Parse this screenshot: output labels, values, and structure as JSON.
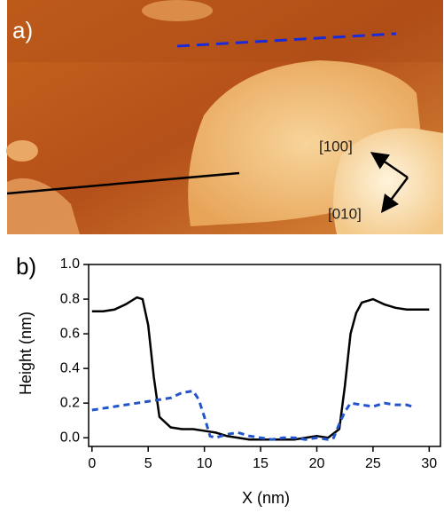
{
  "panel_a": {
    "label": "a)",
    "directions": [
      "[100]",
      "[010]"
    ]
  },
  "chart_data": {
    "type": "line",
    "panel_label": "b)",
    "y_label": "Height (nm)",
    "x_label": "X (nm)",
    "xlim": [
      -0.3,
      31
    ],
    "ylim": [
      -0.05,
      1.0
    ],
    "xticks": [
      0,
      5,
      10,
      15,
      20,
      25,
      30
    ],
    "yticks": [
      {
        "value": 0,
        "label": "0.0"
      },
      {
        "value": 0.2,
        "label": "0.2"
      },
      {
        "value": 0.4,
        "label": "0.4"
      },
      {
        "value": 0.6,
        "label": "0.6"
      },
      {
        "value": 0.8,
        "label": "0.8"
      },
      {
        "value": 1.0,
        "label": "1.0"
      }
    ],
    "series": [
      {
        "color": "#000000",
        "line_style": "solid",
        "x": [
          0,
          1,
          2,
          3,
          4,
          4.5,
          5,
          5.5,
          6,
          7,
          8,
          9,
          10,
          11,
          12,
          13,
          14,
          15,
          16,
          17,
          18,
          19,
          20,
          21,
          22,
          22.5,
          23,
          23.5,
          24,
          25,
          26,
          27,
          28,
          29,
          30
        ],
        "values": [
          0.73,
          0.73,
          0.74,
          0.77,
          0.81,
          0.8,
          0.65,
          0.35,
          0.12,
          0.06,
          0.05,
          0.05,
          0.04,
          0.03,
          0.01,
          0,
          -0.01,
          -0.01,
          -0.01,
          -0.01,
          -0.01,
          0,
          0.01,
          0,
          0.05,
          0.3,
          0.6,
          0.72,
          0.78,
          0.8,
          0.77,
          0.75,
          0.74,
          0.74,
          0.74
        ]
      },
      {
        "color": "#2255cc",
        "line_style": "dashed",
        "x": [
          0,
          1,
          2,
          3,
          4,
          5,
          6,
          7,
          8,
          9,
          9.5,
          10,
          10.5,
          11,
          12,
          13,
          14,
          15,
          16,
          17,
          18,
          19,
          20,
          21,
          21.5,
          22,
          22.5,
          23,
          24,
          25,
          26,
          27,
          28,
          28.5
        ],
        "values": [
          0.16,
          0.17,
          0.18,
          0.19,
          0.2,
          0.21,
          0.22,
          0.23,
          0.26,
          0.27,
          0.22,
          0.12,
          0.01,
          0,
          0.02,
          0.03,
          0.01,
          0,
          -0.01,
          0,
          0,
          -0.01,
          0,
          -0.01,
          0,
          0.08,
          0.15,
          0.2,
          0.19,
          0.18,
          0.2,
          0.19,
          0.19,
          0.18
        ]
      }
    ]
  }
}
